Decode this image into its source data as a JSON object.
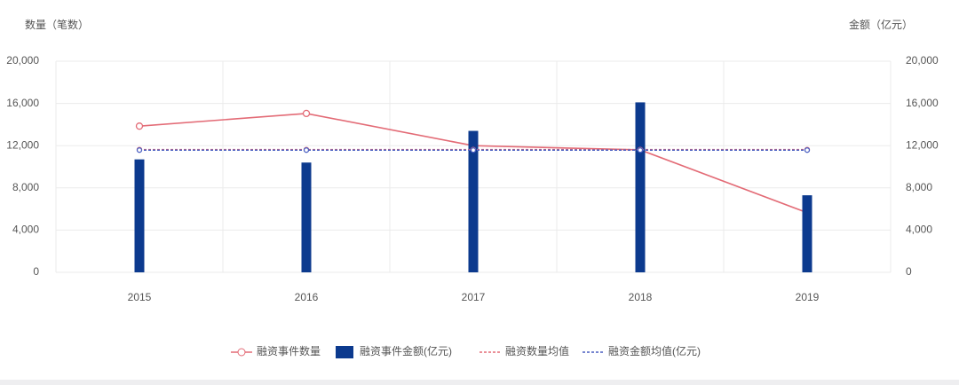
{
  "chart_data": {
    "type": "combo",
    "y_title": "数量（笔数）",
    "y2_title": "金额（亿元）",
    "categories": [
      "2015",
      "2016",
      "2017",
      "2018",
      "2019"
    ],
    "ylim": [
      0,
      20000
    ],
    "yticks": [
      0,
      {
        "value": 4000,
        "label": "4,000"
      },
      {
        "value": 8000,
        "label": "8,000"
      },
      {
        "value": 12000,
        "label": "12,000"
      },
      {
        "value": 16000,
        "label": "16,000"
      },
      {
        "value": 20000,
        "label": "20,000"
      }
    ],
    "y2lim": [
      0,
      20000
    ],
    "y2ticks": [
      0,
      {
        "value": 4000,
        "label": "4,000"
      },
      {
        "value": 8000,
        "label": "8,000"
      },
      {
        "value": 12000,
        "label": "12,000"
      },
      {
        "value": 16000,
        "label": "16,000"
      },
      {
        "value": 20000,
        "label": "20,000"
      }
    ],
    "grid": true,
    "legend": "bottom",
    "series": [
      {
        "name": "融资事件数量",
        "type": "line",
        "line_style": "solid",
        "color": "#e36b76",
        "values": [
          13850,
          15050,
          12000,
          11600,
          5650
        ]
      },
      {
        "name": "融资事件金额(亿元)",
        "type": "bar",
        "axis": "y2",
        "color": "#0c3a8e",
        "values": [
          10700,
          10400,
          13400,
          16100,
          7300
        ]
      },
      {
        "name": "融资数量均值",
        "type": "line",
        "line_style": "dotted",
        "color": "#e36b76",
        "values": [
          11630,
          11630,
          11630,
          11630,
          11630
        ]
      },
      {
        "name": "融资金额均值(亿元)",
        "type": "line",
        "line_style": "dotted",
        "axis": "y2",
        "color": "#4a5fc1",
        "values": [
          11580,
          11580,
          11580,
          11580,
          11580
        ]
      }
    ]
  }
}
